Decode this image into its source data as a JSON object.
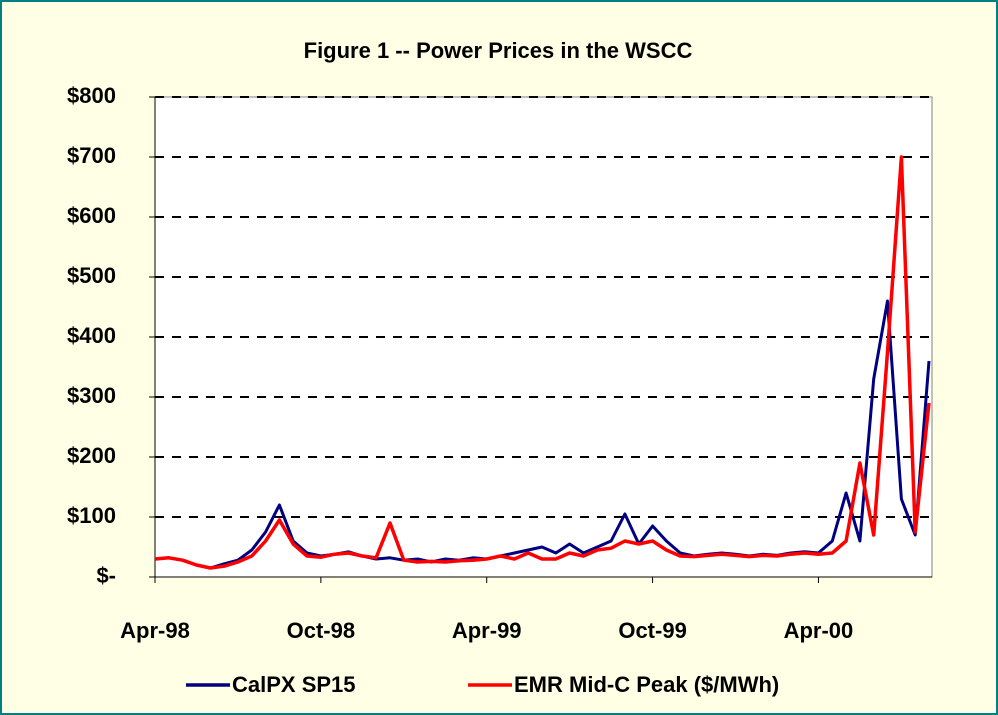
{
  "chart_data": {
    "type": "line",
    "title": "Figure 1  --  Power Prices in the WSCC",
    "categories": [
      "Apr-98",
      null,
      null,
      null,
      null,
      null,
      null,
      null,
      null,
      null,
      null,
      null,
      "Oct-98",
      null,
      null,
      null,
      null,
      null,
      null,
      null,
      null,
      null,
      null,
      null,
      "Apr-99",
      null,
      null,
      null,
      null,
      null,
      null,
      null,
      null,
      null,
      null,
      null,
      "Oct-99",
      null,
      null,
      null,
      null,
      null,
      null,
      null,
      null,
      null,
      null,
      null,
      "Apr-00",
      null,
      null,
      null,
      null,
      null,
      null,
      null,
      null
    ],
    "series": [
      {
        "name": "CalPX SP15",
        "color": "#000080",
        "values": [
          30,
          32,
          28,
          20,
          15,
          22,
          28,
          45,
          75,
          120,
          60,
          40,
          35,
          38,
          42,
          35,
          30,
          32,
          28,
          30,
          25,
          30,
          28,
          32,
          30,
          35,
          40,
          45,
          50,
          40,
          55,
          40,
          50,
          60,
          105,
          55,
          85,
          60,
          40,
          35,
          38,
          40,
          38,
          35,
          38,
          36,
          40,
          42,
          40,
          60,
          140,
          60,
          330,
          460,
          130,
          70,
          360
        ]
      },
      {
        "name": "EMR Mid-C Peak ($/MWh)",
        "color": "#ff0000",
        "values": [
          30,
          32,
          28,
          20,
          15,
          18,
          25,
          35,
          60,
          95,
          55,
          35,
          33,
          38,
          40,
          35,
          32,
          90,
          28,
          25,
          26,
          25,
          27,
          28,
          30,
          35,
          30,
          40,
          30,
          30,
          40,
          35,
          45,
          48,
          60,
          55,
          60,
          45,
          35,
          34,
          36,
          38,
          36,
          34,
          36,
          35,
          38,
          40,
          38,
          40,
          60,
          190,
          70,
          375,
          700,
          75,
          290
        ]
      }
    ],
    "ylim": [
      0,
      800
    ],
    "yticks": [
      {
        "value": 0,
        "label": "$-"
      },
      {
        "value": 100,
        "label": "$100"
      },
      {
        "value": 200,
        "label": "$200"
      },
      {
        "value": 300,
        "label": "$300"
      },
      {
        "value": 400,
        "label": "$400"
      },
      {
        "value": 500,
        "label": "$500"
      },
      {
        "value": 600,
        "label": "$600"
      },
      {
        "value": 700,
        "label": "$700"
      },
      {
        "value": 800,
        "label": "$800"
      }
    ],
    "grid": true
  }
}
